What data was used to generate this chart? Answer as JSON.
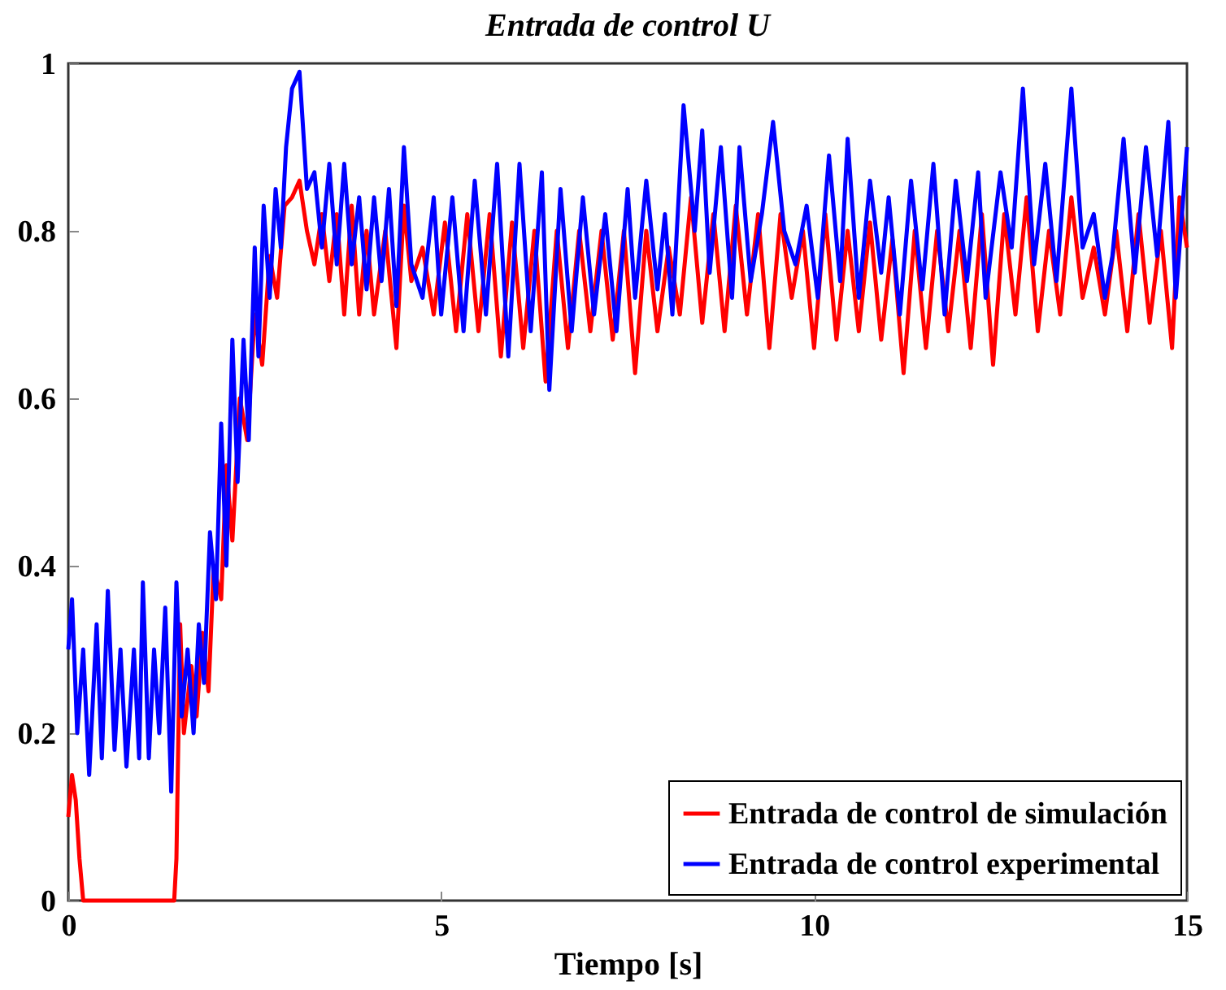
{
  "chart_data": {
    "type": "line",
    "title": "Entrada de control U",
    "xlabel": "Tiempo [s]",
    "xlim": [
      0,
      15
    ],
    "xticks": [
      0,
      5,
      10,
      15
    ],
    "ylim": [
      0,
      1
    ],
    "yticks": [
      0,
      0.2,
      0.4,
      0.6,
      0.8,
      1
    ],
    "legend": "bottom right",
    "grid": false,
    "line_style": "solid",
    "marker": "none",
    "series": [
      {
        "name": "Entrada de control de simulación",
        "color": "#ff0000",
        "x": [
          0,
          0.05,
          0.1,
          0.15,
          0.2,
          1.42,
          1.45,
          1.5,
          1.55,
          1.65,
          1.72,
          1.8,
          1.88,
          1.95,
          2.05,
          2.12,
          2.2,
          2.3,
          2.4,
          2.5,
          2.6,
          2.7,
          2.8,
          2.9,
          3.0,
          3.1,
          3.2,
          3.3,
          3.4,
          3.5,
          3.6,
          3.7,
          3.8,
          3.9,
          4.0,
          4.1,
          4.25,
          4.4,
          4.5,
          4.6,
          4.75,
          4.9,
          5.05,
          5.2,
          5.35,
          5.5,
          5.65,
          5.8,
          5.95,
          6.1,
          6.25,
          6.4,
          6.55,
          6.7,
          6.85,
          7.0,
          7.15,
          7.3,
          7.45,
          7.6,
          7.75,
          7.9,
          8.05,
          8.2,
          8.35,
          8.5,
          8.65,
          8.8,
          8.95,
          9.1,
          9.25,
          9.4,
          9.55,
          9.7,
          9.85,
          10.0,
          10.15,
          10.3,
          10.45,
          10.6,
          10.75,
          10.9,
          11.05,
          11.2,
          11.35,
          11.5,
          11.65,
          11.8,
          11.95,
          12.1,
          12.25,
          12.4,
          12.55,
          12.7,
          12.85,
          13.0,
          13.15,
          13.3,
          13.45,
          13.6,
          13.75,
          13.9,
          14.05,
          14.2,
          14.35,
          14.5,
          14.65,
          14.8,
          14.9,
          15.0
        ],
        "values": [
          0.1,
          0.15,
          0.12,
          0.05,
          0.0,
          0.0,
          0.05,
          0.33,
          0.2,
          0.28,
          0.22,
          0.32,
          0.25,
          0.4,
          0.36,
          0.52,
          0.43,
          0.6,
          0.55,
          0.7,
          0.64,
          0.77,
          0.72,
          0.83,
          0.84,
          0.86,
          0.8,
          0.76,
          0.82,
          0.74,
          0.82,
          0.7,
          0.83,
          0.7,
          0.8,
          0.7,
          0.8,
          0.66,
          0.83,
          0.74,
          0.78,
          0.7,
          0.81,
          0.68,
          0.82,
          0.68,
          0.82,
          0.65,
          0.81,
          0.66,
          0.8,
          0.62,
          0.8,
          0.66,
          0.8,
          0.68,
          0.8,
          0.67,
          0.8,
          0.63,
          0.8,
          0.68,
          0.78,
          0.7,
          0.84,
          0.69,
          0.82,
          0.68,
          0.83,
          0.7,
          0.82,
          0.66,
          0.82,
          0.72,
          0.8,
          0.66,
          0.82,
          0.67,
          0.8,
          0.68,
          0.81,
          0.67,
          0.79,
          0.63,
          0.8,
          0.66,
          0.8,
          0.68,
          0.8,
          0.66,
          0.82,
          0.64,
          0.82,
          0.7,
          0.84,
          0.68,
          0.8,
          0.7,
          0.84,
          0.72,
          0.78,
          0.7,
          0.8,
          0.68,
          0.82,
          0.69,
          0.8,
          0.66,
          0.84,
          0.78
        ]
      },
      {
        "name": "Entrada de control experimental",
        "color": "#0000ff",
        "x": [
          0,
          0.05,
          0.12,
          0.2,
          0.28,
          0.38,
          0.45,
          0.53,
          0.62,
          0.7,
          0.78,
          0.88,
          0.95,
          1.0,
          1.08,
          1.15,
          1.22,
          1.3,
          1.38,
          1.45,
          1.52,
          1.6,
          1.68,
          1.75,
          1.82,
          1.9,
          1.98,
          2.05,
          2.12,
          2.2,
          2.27,
          2.35,
          2.42,
          2.5,
          2.55,
          2.62,
          2.7,
          2.78,
          2.85,
          2.92,
          3.0,
          3.1,
          3.2,
          3.3,
          3.4,
          3.5,
          3.6,
          3.7,
          3.8,
          3.9,
          4.0,
          4.1,
          4.2,
          4.3,
          4.4,
          4.5,
          4.6,
          4.75,
          4.9,
          5.0,
          5.15,
          5.3,
          5.45,
          5.6,
          5.75,
          5.9,
          6.05,
          6.2,
          6.35,
          6.45,
          6.6,
          6.75,
          6.9,
          7.05,
          7.2,
          7.35,
          7.5,
          7.6,
          7.75,
          7.9,
          8.0,
          8.1,
          8.25,
          8.4,
          8.5,
          8.6,
          8.75,
          8.9,
          9.0,
          9.15,
          9.3,
          9.45,
          9.6,
          9.75,
          9.9,
          10.05,
          10.2,
          10.35,
          10.45,
          10.6,
          10.75,
          10.9,
          11.0,
          11.15,
          11.3,
          11.45,
          11.6,
          11.75,
          11.9,
          12.05,
          12.2,
          12.3,
          12.5,
          12.65,
          12.8,
          12.95,
          13.1,
          13.25,
          13.45,
          13.6,
          13.75,
          13.9,
          14.0,
          14.15,
          14.3,
          14.45,
          14.6,
          14.75,
          14.85,
          15.0
        ],
        "values": [
          0.3,
          0.36,
          0.2,
          0.3,
          0.15,
          0.33,
          0.17,
          0.37,
          0.18,
          0.3,
          0.16,
          0.3,
          0.17,
          0.38,
          0.17,
          0.3,
          0.2,
          0.35,
          0.13,
          0.38,
          0.22,
          0.3,
          0.2,
          0.33,
          0.26,
          0.44,
          0.36,
          0.57,
          0.4,
          0.67,
          0.5,
          0.67,
          0.55,
          0.78,
          0.65,
          0.83,
          0.72,
          0.85,
          0.78,
          0.9,
          0.97,
          0.99,
          0.85,
          0.87,
          0.78,
          0.88,
          0.76,
          0.88,
          0.76,
          0.84,
          0.73,
          0.84,
          0.74,
          0.85,
          0.71,
          0.9,
          0.76,
          0.72,
          0.84,
          0.7,
          0.84,
          0.68,
          0.86,
          0.7,
          0.88,
          0.65,
          0.88,
          0.68,
          0.87,
          0.61,
          0.85,
          0.68,
          0.84,
          0.7,
          0.82,
          0.68,
          0.85,
          0.72,
          0.86,
          0.73,
          0.82,
          0.7,
          0.95,
          0.8,
          0.92,
          0.75,
          0.9,
          0.72,
          0.9,
          0.74,
          0.82,
          0.93,
          0.8,
          0.76,
          0.83,
          0.72,
          0.89,
          0.74,
          0.91,
          0.72,
          0.86,
          0.75,
          0.84,
          0.7,
          0.86,
          0.73,
          0.88,
          0.7,
          0.86,
          0.74,
          0.87,
          0.72,
          0.87,
          0.78,
          0.97,
          0.76,
          0.88,
          0.74,
          0.97,
          0.78,
          0.82,
          0.72,
          0.77,
          0.91,
          0.75,
          0.9,
          0.77,
          0.93,
          0.72,
          0.9
        ]
      }
    ]
  }
}
